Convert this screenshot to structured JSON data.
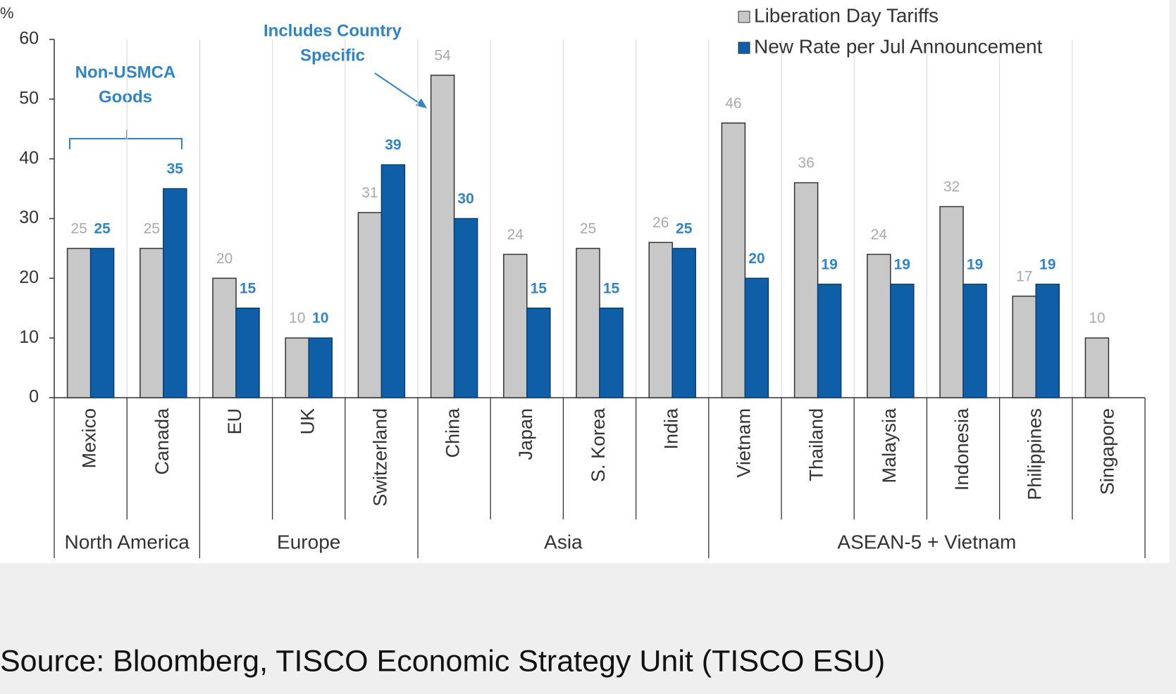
{
  "chart_data": {
    "type": "bar",
    "y_unit": "%",
    "categories": [
      "Mexico",
      "Canada",
      "EU",
      "UK",
      "Switzerland",
      "China",
      "Japan",
      "S. Korea",
      "India",
      "Vietnam",
      "Thailand",
      "Malaysia",
      "Indonesia",
      "Philippines",
      "Singapore"
    ],
    "groups": [
      {
        "name": "North America",
        "span": 2
      },
      {
        "name": "Europe",
        "span": 3
      },
      {
        "name": "Asia",
        "span": 4
      },
      {
        "name": "ASEAN-5 + Vietnam",
        "span": 6
      }
    ],
    "series": [
      {
        "name": "Liberation Day Tariffs",
        "color": "#c8c8c8",
        "values": [
          25,
          25,
          20,
          10,
          31,
          54,
          24,
          25,
          26,
          46,
          36,
          24,
          32,
          17,
          10
        ]
      },
      {
        "name": "New Rate per Jul Announcement",
        "color": "#0f5ea8",
        "values": [
          25,
          35,
          15,
          10,
          39,
          30,
          15,
          15,
          25,
          20,
          19,
          19,
          19,
          19,
          null
        ]
      }
    ],
    "ylim": [
      0,
      60
    ],
    "yticks": [
      0,
      10,
      20,
      30,
      40,
      50,
      60
    ],
    "annotations": [
      "Non-USMCA",
      "Goods",
      "Includes Country",
      "Specific"
    ],
    "legend": "top-right"
  },
  "source": "Source: Bloomberg, TISCO Economic Strategy Unit (TISCO ESU)"
}
